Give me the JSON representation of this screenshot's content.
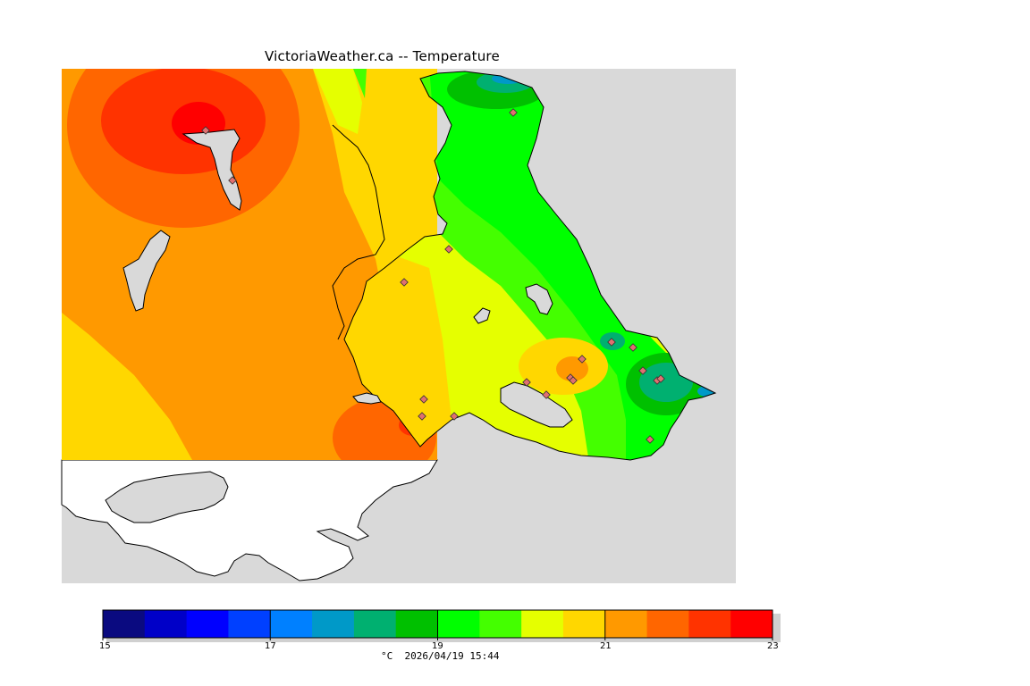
{
  "title": "VictoriaWeather.ca -- Temperature",
  "legend": {
    "unit": "°C",
    "timestamp": "2026/04/19 15:44",
    "ticks": [
      "15",
      "17",
      "19",
      "21",
      "23"
    ],
    "colors": [
      "#0a0a80",
      "#0000c8",
      "#0000ff",
      "#0040ff",
      "#0080ff",
      "#0099c8",
      "#00b070",
      "#00c000",
      "#00ff00",
      "#44ff00",
      "#e5ff00",
      "#ffd700",
      "#ff9900",
      "#ff6600",
      "#ff3300",
      "#ff0000"
    ]
  },
  "map": {
    "land_color": "#d9d9d9",
    "outside_color": "#ffffff",
    "station_marker_color": "#e07070"
  }
}
